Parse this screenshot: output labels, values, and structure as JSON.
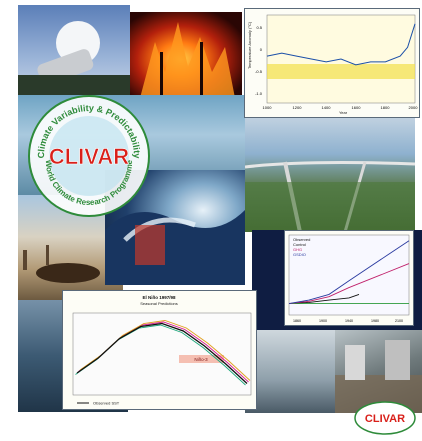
{
  "logo": {
    "arc_top": "Climate Variability & Predictability",
    "arc_bottom": "World Climate Research Programme",
    "wordmark": "CLIVAR"
  },
  "temp_chart": {
    "ylabel": "Temperature Anomaly (°C)",
    "xlabel": "Year",
    "ytick_labels": [
      "0.5",
      "0",
      "-0.5",
      "-1.0"
    ],
    "xtick_labels": [
      "1000",
      "1200",
      "1400",
      "1600",
      "1800",
      "2000"
    ]
  },
  "forcing_chart": {
    "legend": [
      "Observed",
      "Control",
      "GHG",
      "GSDIO"
    ],
    "xtick_labels": [
      "1860",
      "1900",
      "1940",
      "1980",
      "2100"
    ]
  },
  "nino_chart": {
    "title": "El Niño 1997/98",
    "subtitle": "Seasonal Predictions",
    "region_label": "Niño-3",
    "legend": "Observed SST",
    "colors": {
      "observed": "#111111",
      "forecast_a": "#d81b8c",
      "forecast_b": "#1aa67a",
      "forecast_c": "#e0a020"
    }
  },
  "logo_small": {
    "wordmark": "CLIVAR"
  },
  "chart_data": [
    {
      "type": "line",
      "xlabel": "Year",
      "ylabel": "Temperature Anomaly (°C)",
      "xlim": [
        1000,
        2000
      ],
      "ylim": [
        -1.0,
        0.5
      ],
      "series": [
        {
          "x": [
            1000,
            1100,
            1200,
            1300,
            1400,
            1500,
            1600,
            1700,
            1800,
            1900,
            1950,
            2000
          ],
          "y": [
            -0.2,
            -0.15,
            -0.2,
            -0.25,
            -0.3,
            -0.25,
            -0.35,
            -0.3,
            -0.3,
            -0.2,
            -0.05,
            0.35
          ]
        }
      ]
    },
    {
      "type": "line",
      "xlim": [
        1860,
        2100
      ],
      "ylim": [
        -1,
        6
      ],
      "series": [
        {
          "name": "Observed",
          "x": [
            1860,
            1900,
            1940,
            1980,
            2000
          ],
          "y": [
            0,
            0.1,
            0.3,
            0.5,
            0.8
          ]
        },
        {
          "name": "Control",
          "x": [
            1860,
            1900,
            1940,
            1980,
            2100
          ],
          "y": [
            0,
            0,
            0,
            0,
            0
          ]
        },
        {
          "name": "GHG",
          "x": [
            1860,
            1900,
            1940,
            1980,
            2100
          ],
          "y": [
            0,
            0.2,
            0.6,
            1.4,
            3.5
          ]
        },
        {
          "name": "GSDIO",
          "x": [
            1860,
            1900,
            1940,
            1980,
            2100
          ],
          "y": [
            0,
            0.3,
            0.8,
            2.0,
            5.5
          ]
        }
      ]
    },
    {
      "type": "line",
      "title": "El Niño 1997/98",
      "series": [
        {
          "name": "Observed SST",
          "x": [
            0,
            1,
            2,
            3,
            4,
            5,
            6,
            7,
            8
          ],
          "y": [
            0.2,
            1.2,
            2.5,
            3.3,
            3.5,
            3.0,
            2.0,
            0.8,
            -0.5
          ]
        }
      ]
    }
  ]
}
